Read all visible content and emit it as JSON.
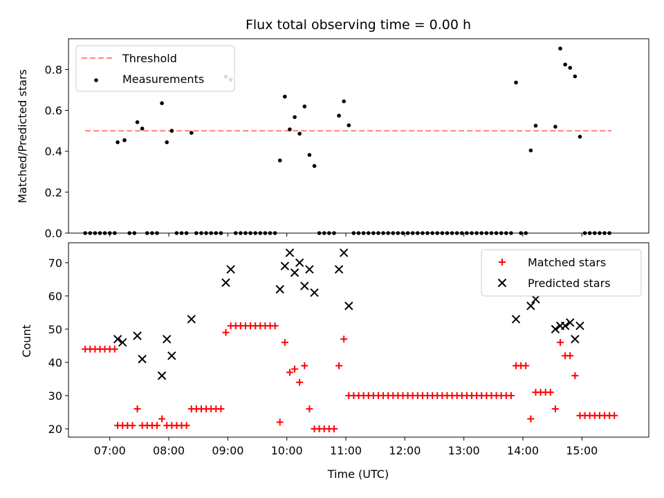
{
  "chart_data": [
    {
      "type": "scatter",
      "title": "Flux total observing time = 0.00 h",
      "xlabel": "",
      "ylabel": "Matched/Predicted stars",
      "ylim": [
        0,
        0.95
      ],
      "yticks": [
        "0.0",
        "0.2",
        "0.4",
        "0.6",
        "0.8"
      ],
      "yticks_values": [
        0,
        0.2,
        0.4,
        0.6,
        0.8
      ],
      "xlim": [
        "06:18",
        "16:08"
      ],
      "legend_position": "top-left",
      "threshold": {
        "name": "Threshold",
        "value": 0.5,
        "x_start": "06:35",
        "x_end": "15:30",
        "color": "#ff8080"
      },
      "series": [
        {
          "name": "Measurements",
          "color": "#000000",
          "points": [
            [
              "06:35",
              0
            ],
            [
              "06:40",
              0
            ],
            [
              "06:45",
              0
            ],
            [
              "06:50",
              0
            ],
            [
              "06:55",
              0
            ],
            [
              "07:00",
              0
            ],
            [
              "07:05",
              0
            ],
            [
              "07:08",
              0.444
            ],
            [
              "07:15",
              0.454
            ],
            [
              "07:20",
              0
            ],
            [
              "07:25",
              0
            ],
            [
              "07:28",
              0.542
            ],
            [
              "07:33",
              0.511
            ],
            [
              "07:38",
              0
            ],
            [
              "07:43",
              0
            ],
            [
              "07:48",
              0
            ],
            [
              "07:53",
              0.635
            ],
            [
              "07:58",
              0.444
            ],
            [
              "08:03",
              0.5
            ],
            [
              "08:08",
              0
            ],
            [
              "08:13",
              0
            ],
            [
              "08:18",
              0
            ],
            [
              "08:23",
              0.49
            ],
            [
              "08:28",
              0
            ],
            [
              "08:33",
              0
            ],
            [
              "08:38",
              0
            ],
            [
              "08:43",
              0
            ],
            [
              "08:48",
              0
            ],
            [
              "08:53",
              0
            ],
            [
              "08:58",
              0.765
            ],
            [
              "09:03",
              0.75
            ],
            [
              "09:08",
              0
            ],
            [
              "09:13",
              0
            ],
            [
              "09:18",
              0
            ],
            [
              "09:23",
              0
            ],
            [
              "09:28",
              0
            ],
            [
              "09:33",
              0
            ],
            [
              "09:38",
              0
            ],
            [
              "09:43",
              0
            ],
            [
              "09:48",
              0
            ],
            [
              "09:53",
              0.355
            ],
            [
              "09:58",
              0.667
            ],
            [
              "10:03",
              0.507
            ],
            [
              "10:08",
              0.567
            ],
            [
              "10:13",
              0.486
            ],
            [
              "10:18",
              0.619
            ],
            [
              "10:23",
              0.382
            ],
            [
              "10:28",
              0.328
            ],
            [
              "10:33",
              0
            ],
            [
              "10:38",
              0
            ],
            [
              "10:43",
              0
            ],
            [
              "10:48",
              0
            ],
            [
              "10:53",
              0.574
            ],
            [
              "10:58",
              0.644
            ],
            [
              "11:03",
              0.527
            ],
            [
              "11:08",
              0
            ],
            [
              "11:13",
              0
            ],
            [
              "11:18",
              0
            ],
            [
              "11:23",
              0
            ],
            [
              "11:28",
              0
            ],
            [
              "11:33",
              0
            ],
            [
              "11:38",
              0
            ],
            [
              "11:43",
              0
            ],
            [
              "11:48",
              0
            ],
            [
              "11:53",
              0
            ],
            [
              "11:58",
              0
            ],
            [
              "12:03",
              0
            ],
            [
              "12:08",
              0
            ],
            [
              "12:13",
              0
            ],
            [
              "12:18",
              0
            ],
            [
              "12:23",
              0
            ],
            [
              "12:28",
              0
            ],
            [
              "12:33",
              0
            ],
            [
              "12:38",
              0
            ],
            [
              "12:43",
              0
            ],
            [
              "12:48",
              0
            ],
            [
              "12:53",
              0
            ],
            [
              "12:58",
              0
            ],
            [
              "13:03",
              0
            ],
            [
              "13:08",
              0
            ],
            [
              "13:13",
              0
            ],
            [
              "13:18",
              0
            ],
            [
              "13:23",
              0
            ],
            [
              "13:28",
              0
            ],
            [
              "13:33",
              0
            ],
            [
              "13:38",
              0
            ],
            [
              "13:43",
              0
            ],
            [
              "13:48",
              0
            ],
            [
              "13:53",
              0.736
            ],
            [
              "13:58",
              0
            ],
            [
              "14:03",
              0
            ],
            [
              "14:08",
              0.404
            ],
            [
              "14:13",
              0.525
            ],
            [
              "14:33",
              0.52
            ],
            [
              "14:38",
              0.902
            ],
            [
              "14:43",
              0.824
            ],
            [
              "14:48",
              0.808
            ],
            [
              "14:53",
              0.766
            ],
            [
              "14:58",
              0.471
            ],
            [
              "15:03",
              0
            ],
            [
              "15:08",
              0
            ],
            [
              "15:13",
              0
            ],
            [
              "15:18",
              0
            ],
            [
              "15:23",
              0
            ],
            [
              "15:28",
              0
            ]
          ]
        }
      ]
    },
    {
      "type": "scatter",
      "title": "",
      "xlabel": "Time (UTC)",
      "ylabel": "Count",
      "ylim": [
        17.5,
        76
      ],
      "yticks": [
        "20",
        "30",
        "40",
        "50",
        "60",
        "70"
      ],
      "yticks_values": [
        20,
        30,
        40,
        50,
        60,
        70
      ],
      "xlim": [
        "06:18",
        "16:08"
      ],
      "xticks": [
        "07:00",
        "08:00",
        "09:00",
        "10:00",
        "11:00",
        "12:00",
        "13:00",
        "14:00",
        "15:00"
      ],
      "legend_position": "top-right",
      "series": [
        {
          "name": "Matched stars",
          "color": "#ff0000",
          "marker": "plus",
          "points": [
            [
              "06:35",
              44
            ],
            [
              "06:40",
              44
            ],
            [
              "06:45",
              44
            ],
            [
              "06:50",
              44
            ],
            [
              "06:55",
              44
            ],
            [
              "07:00",
              44
            ],
            [
              "07:05",
              44
            ],
            [
              "07:08",
              21
            ],
            [
              "07:13",
              21
            ],
            [
              "07:18",
              21
            ],
            [
              "07:23",
              21
            ],
            [
              "07:28",
              26
            ],
            [
              "07:33",
              21
            ],
            [
              "07:38",
              21
            ],
            [
              "07:43",
              21
            ],
            [
              "07:48",
              21
            ],
            [
              "07:53",
              23
            ],
            [
              "07:58",
              21
            ],
            [
              "08:03",
              21
            ],
            [
              "08:08",
              21
            ],
            [
              "08:13",
              21
            ],
            [
              "08:18",
              21
            ],
            [
              "08:23",
              26
            ],
            [
              "08:28",
              26
            ],
            [
              "08:33",
              26
            ],
            [
              "08:38",
              26
            ],
            [
              "08:43",
              26
            ],
            [
              "08:48",
              26
            ],
            [
              "08:53",
              26
            ],
            [
              "08:58",
              49
            ],
            [
              "09:03",
              51
            ],
            [
              "09:08",
              51
            ],
            [
              "09:13",
              51
            ],
            [
              "09:18",
              51
            ],
            [
              "09:23",
              51
            ],
            [
              "09:28",
              51
            ],
            [
              "09:33",
              51
            ],
            [
              "09:38",
              51
            ],
            [
              "09:43",
              51
            ],
            [
              "09:48",
              51
            ],
            [
              "09:53",
              22
            ],
            [
              "09:58",
              46
            ],
            [
              "10:03",
              37
            ],
            [
              "10:08",
              38
            ],
            [
              "10:13",
              34
            ],
            [
              "10:18",
              39
            ],
            [
              "10:23",
              26
            ],
            [
              "10:28",
              20
            ],
            [
              "10:33",
              20
            ],
            [
              "10:38",
              20
            ],
            [
              "10:43",
              20
            ],
            [
              "10:48",
              20
            ],
            [
              "10:53",
              39
            ],
            [
              "10:58",
              47
            ],
            [
              "11:03",
              30
            ],
            [
              "11:08",
              30
            ],
            [
              "11:13",
              30
            ],
            [
              "11:18",
              30
            ],
            [
              "11:23",
              30
            ],
            [
              "11:28",
              30
            ],
            [
              "11:33",
              30
            ],
            [
              "11:38",
              30
            ],
            [
              "11:43",
              30
            ],
            [
              "11:48",
              30
            ],
            [
              "11:53",
              30
            ],
            [
              "11:58",
              30
            ],
            [
              "12:03",
              30
            ],
            [
              "12:08",
              30
            ],
            [
              "12:13",
              30
            ],
            [
              "12:18",
              30
            ],
            [
              "12:23",
              30
            ],
            [
              "12:28",
              30
            ],
            [
              "12:33",
              30
            ],
            [
              "12:38",
              30
            ],
            [
              "12:43",
              30
            ],
            [
              "12:48",
              30
            ],
            [
              "12:53",
              30
            ],
            [
              "12:58",
              30
            ],
            [
              "13:03",
              30
            ],
            [
              "13:08",
              30
            ],
            [
              "13:13",
              30
            ],
            [
              "13:18",
              30
            ],
            [
              "13:23",
              30
            ],
            [
              "13:28",
              30
            ],
            [
              "13:33",
              30
            ],
            [
              "13:38",
              30
            ],
            [
              "13:43",
              30
            ],
            [
              "13:48",
              30
            ],
            [
              "13:53",
              39
            ],
            [
              "13:58",
              39
            ],
            [
              "14:03",
              39
            ],
            [
              "14:08",
              23
            ],
            [
              "14:13",
              31
            ],
            [
              "14:18",
              31
            ],
            [
              "14:23",
              31
            ],
            [
              "14:28",
              31
            ],
            [
              "14:33",
              26
            ],
            [
              "14:38",
              46
            ],
            [
              "14:43",
              42
            ],
            [
              "14:48",
              42
            ],
            [
              "14:53",
              36
            ],
            [
              "14:58",
              24
            ],
            [
              "15:03",
              24
            ],
            [
              "15:08",
              24
            ],
            [
              "15:13",
              24
            ],
            [
              "15:18",
              24
            ],
            [
              "15:23",
              24
            ],
            [
              "15:28",
              24
            ],
            [
              "15:33",
              24
            ]
          ]
        },
        {
          "name": "Predicted stars",
          "color": "#000000",
          "marker": "x",
          "points": [
            [
              "07:08",
              47
            ],
            [
              "07:13",
              46
            ],
            [
              "07:28",
              48
            ],
            [
              "07:33",
              41
            ],
            [
              "07:53",
              36
            ],
            [
              "07:58",
              47
            ],
            [
              "08:03",
              42
            ],
            [
              "08:23",
              53
            ],
            [
              "08:58",
              64
            ],
            [
              "09:03",
              68
            ],
            [
              "09:53",
              62
            ],
            [
              "09:58",
              69
            ],
            [
              "10:03",
              73
            ],
            [
              "10:08",
              67
            ],
            [
              "10:13",
              70
            ],
            [
              "10:18",
              63
            ],
            [
              "10:23",
              68
            ],
            [
              "10:28",
              61
            ],
            [
              "10:53",
              68
            ],
            [
              "10:58",
              73
            ],
            [
              "11:03",
              57
            ],
            [
              "13:53",
              53
            ],
            [
              "14:08",
              57
            ],
            [
              "14:13",
              59
            ],
            [
              "14:33",
              50
            ],
            [
              "14:38",
              51
            ],
            [
              "14:43",
              51
            ],
            [
              "14:48",
              52
            ],
            [
              "14:53",
              47
            ],
            [
              "14:58",
              51
            ]
          ]
        }
      ]
    }
  ]
}
